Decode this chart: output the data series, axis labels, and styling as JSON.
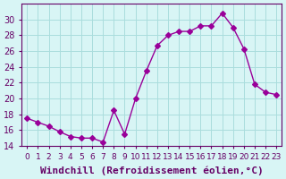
{
  "hours": [
    0,
    1,
    2,
    3,
    4,
    5,
    6,
    7,
    8,
    9,
    10,
    11,
    12,
    13,
    14,
    15,
    16,
    17,
    18,
    19,
    20,
    21,
    22,
    23
  ],
  "values": [
    17.5,
    17.0,
    16.5,
    15.8,
    15.2,
    15.0,
    15.0,
    14.5,
    18.5,
    15.5,
    20.0,
    23.5,
    26.7,
    28.0,
    28.5,
    28.5,
    29.2,
    29.2,
    30.8,
    29.0,
    26.3,
    21.8,
    20.8,
    20.5
  ],
  "line_color": "#990099",
  "marker": "D",
  "marker_size": 3,
  "bg_color": "#d8f5f5",
  "grid_color": "#aadddd",
  "xlabel": "Windchill (Refroidissement éolien,°C)",
  "ylabel": "",
  "ylim": [
    14,
    32
  ],
  "xlim": [
    -0.5,
    23.5
  ],
  "yticks": [
    14,
    16,
    18,
    20,
    22,
    24,
    26,
    28,
    30
  ],
  "xtick_labels": [
    "0",
    "1",
    "2",
    "3",
    "4",
    "5",
    "6",
    "7",
    "8",
    "9",
    "10",
    "11",
    "12",
    "13",
    "14",
    "15",
    "16",
    "17",
    "18",
    "19",
    "20",
    "21",
    "22",
    "23"
  ],
  "tick_color": "#660066",
  "label_fontsize": 8,
  "tick_fontsize": 7
}
